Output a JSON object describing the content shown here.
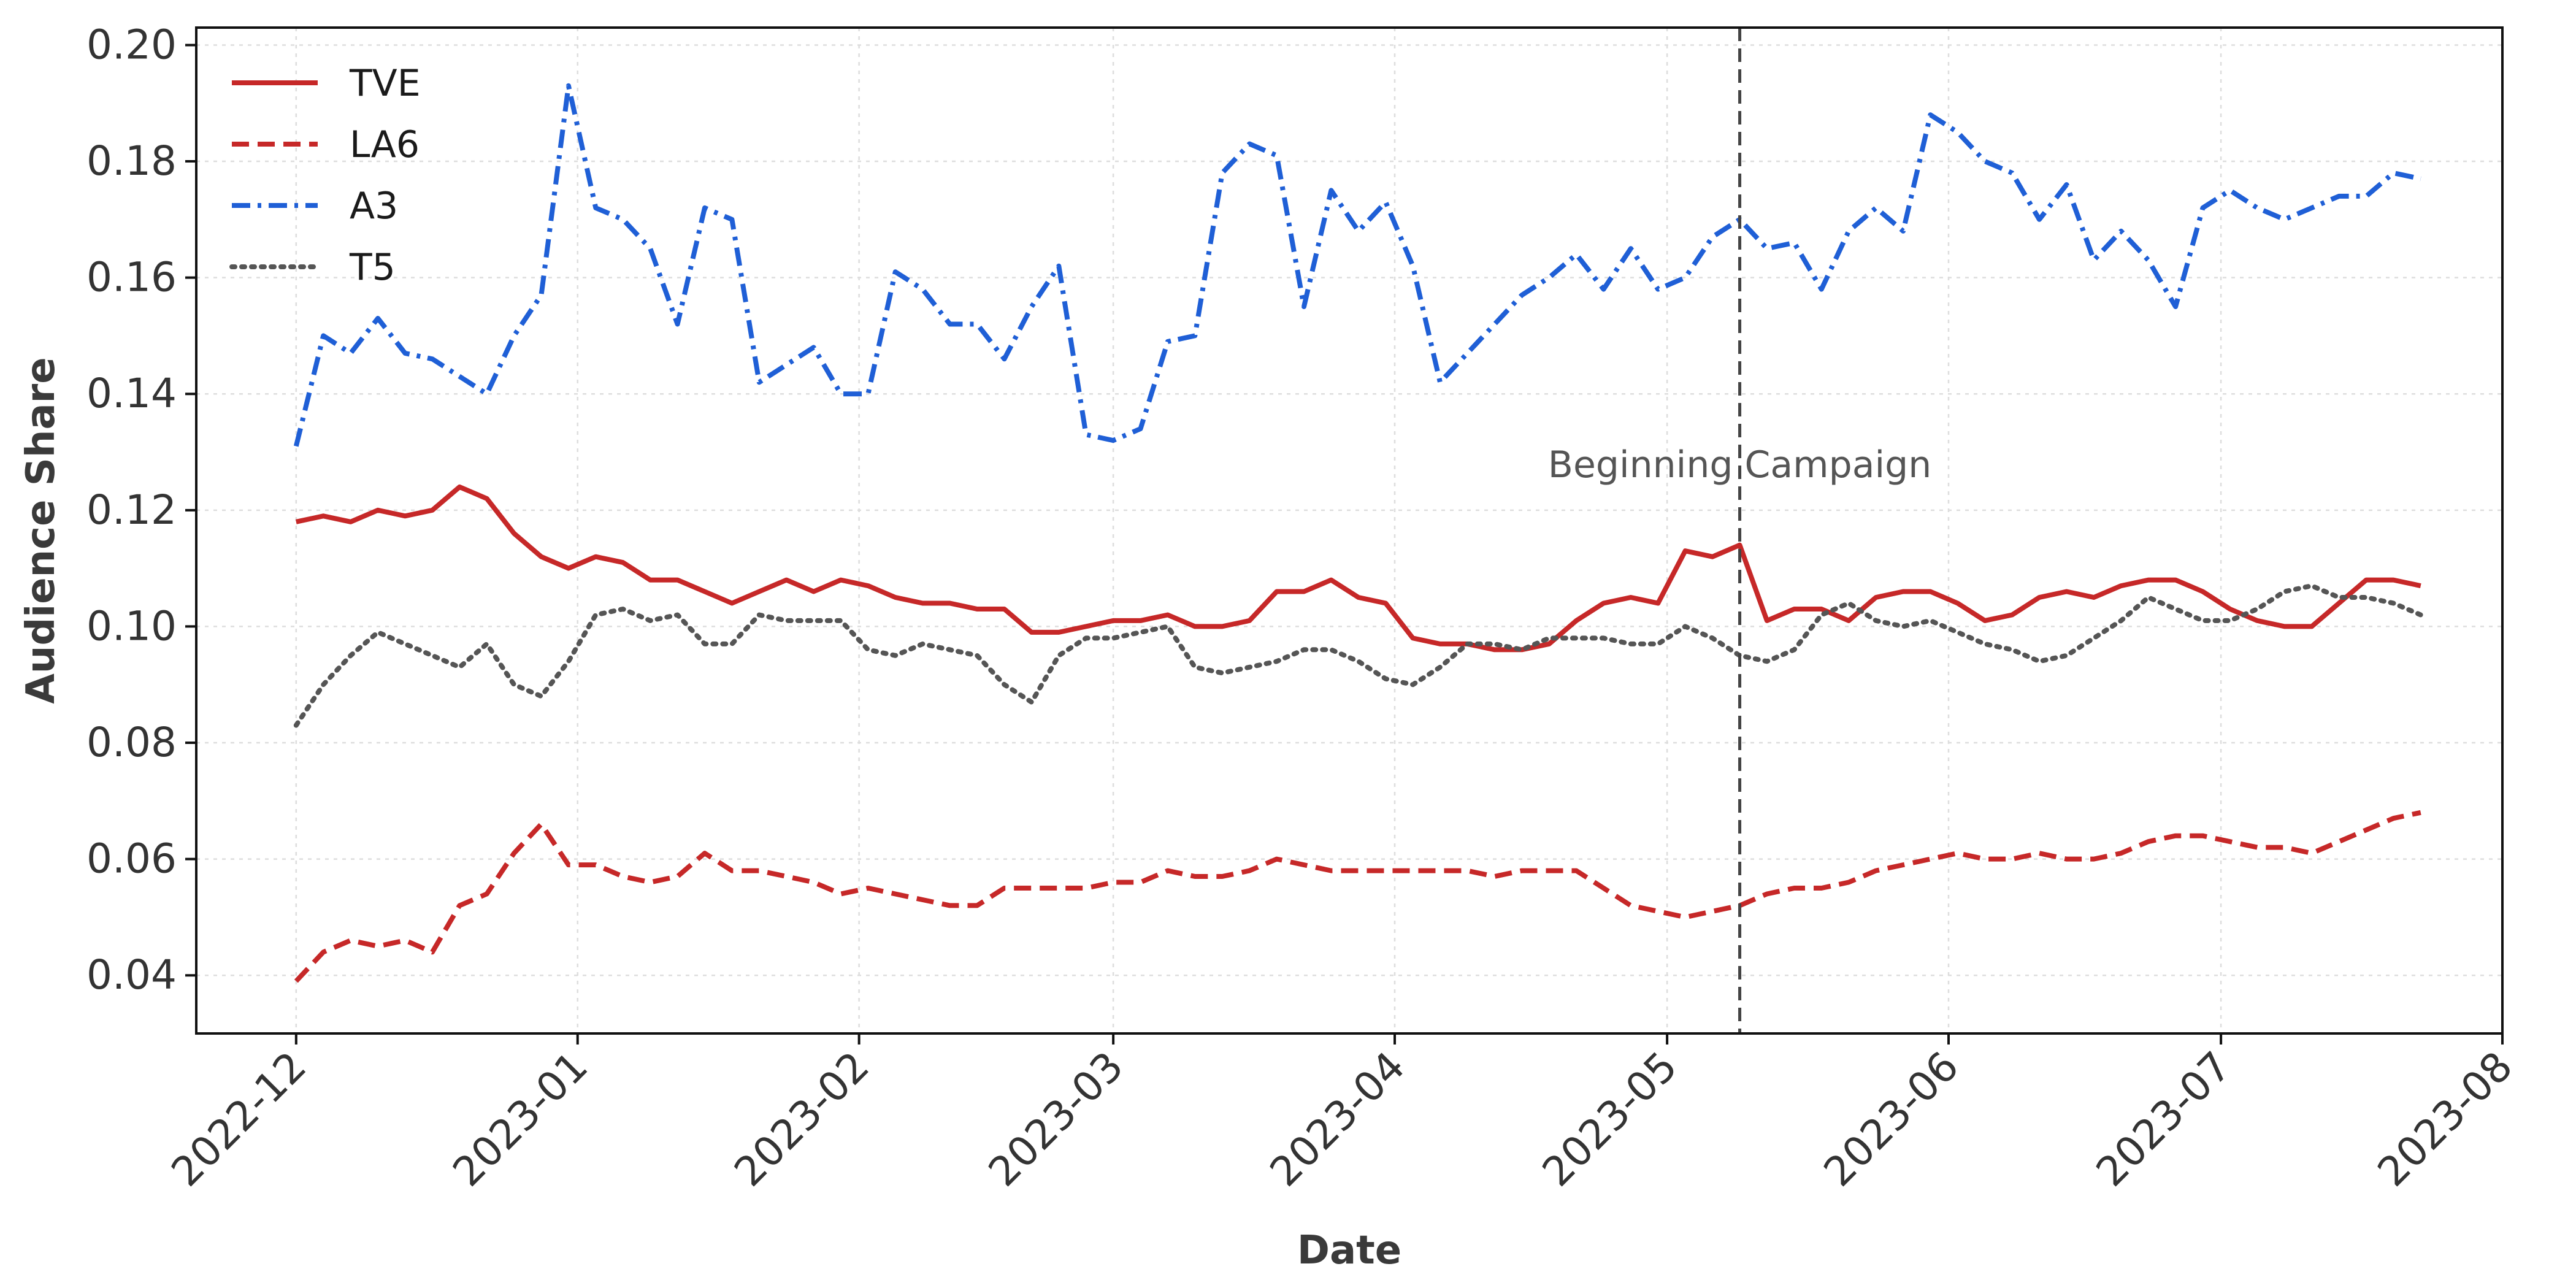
{
  "chart_data": {
    "type": "line",
    "title": "",
    "xlabel": "Date",
    "ylabel": "Audience Share",
    "xlim": [
      "2022-11-20",
      "2023-08-01"
    ],
    "ylim": [
      0.03,
      0.203
    ],
    "x_ticks": [
      "2022-12",
      "2023-01",
      "2023-02",
      "2023-03",
      "2023-04",
      "2023-05",
      "2023-06",
      "2023-07",
      "2023-08"
    ],
    "y_ticks": [
      "0.04",
      "0.06",
      "0.08",
      "0.10",
      "0.12",
      "0.14",
      "0.16",
      "0.18",
      "0.20"
    ],
    "grid": true,
    "legend_position": "top-left",
    "annotation": {
      "label": "Beginning Campaign",
      "date": "2023-05-09",
      "y": 0.128
    },
    "dates": [
      "2022-12-01",
      "2022-12-04",
      "2022-12-07",
      "2022-12-10",
      "2022-12-13",
      "2022-12-16",
      "2022-12-19",
      "2022-12-22",
      "2022-12-25",
      "2022-12-28",
      "2022-12-31",
      "2023-01-03",
      "2023-01-06",
      "2023-01-09",
      "2023-01-12",
      "2023-01-15",
      "2023-01-18",
      "2023-01-21",
      "2023-01-24",
      "2023-01-27",
      "2023-01-30",
      "2023-02-02",
      "2023-02-05",
      "2023-02-08",
      "2023-02-11",
      "2023-02-14",
      "2023-02-17",
      "2023-02-20",
      "2023-02-23",
      "2023-02-26",
      "2023-03-01",
      "2023-03-04",
      "2023-03-07",
      "2023-03-10",
      "2023-03-13",
      "2023-03-16",
      "2023-03-19",
      "2023-03-22",
      "2023-03-25",
      "2023-03-28",
      "2023-03-31",
      "2023-04-03",
      "2023-04-06",
      "2023-04-09",
      "2023-04-12",
      "2023-04-15",
      "2023-04-18",
      "2023-04-21",
      "2023-04-24",
      "2023-04-27",
      "2023-04-30",
      "2023-05-03",
      "2023-05-06",
      "2023-05-09",
      "2023-05-12",
      "2023-05-15",
      "2023-05-18",
      "2023-05-21",
      "2023-05-24",
      "2023-05-27",
      "2023-05-30",
      "2023-06-02",
      "2023-06-05",
      "2023-06-08",
      "2023-06-11",
      "2023-06-14",
      "2023-06-17",
      "2023-06-20",
      "2023-06-23",
      "2023-06-26",
      "2023-06-29",
      "2023-07-02",
      "2023-07-05",
      "2023-07-08",
      "2023-07-11",
      "2023-07-14",
      "2023-07-17",
      "2023-07-20",
      "2023-07-23"
    ],
    "series": [
      {
        "name": "TVE",
        "color": "#c62828",
        "dash": "solid",
        "values": [
          0.118,
          0.119,
          0.118,
          0.12,
          0.119,
          0.12,
          0.124,
          0.122,
          0.116,
          0.112,
          0.11,
          0.112,
          0.111,
          0.108,
          0.108,
          0.106,
          0.104,
          0.106,
          0.108,
          0.106,
          0.108,
          0.107,
          0.105,
          0.104,
          0.104,
          0.103,
          0.103,
          0.099,
          0.099,
          0.1,
          0.101,
          0.101,
          0.102,
          0.1,
          0.1,
          0.101,
          0.106,
          0.106,
          0.108,
          0.105,
          0.104,
          0.098,
          0.097,
          0.097,
          0.096,
          0.096,
          0.097,
          0.101,
          0.104,
          0.105,
          0.104,
          0.113,
          0.112,
          0.114,
          0.101,
          0.103,
          0.103,
          0.101,
          0.105,
          0.106,
          0.106,
          0.104,
          0.101,
          0.102,
          0.105,
          0.106,
          0.105,
          0.107,
          0.108,
          0.108,
          0.106,
          0.103,
          0.101,
          0.1,
          0.1,
          0.104,
          0.108,
          0.108,
          0.107
        ]
      },
      {
        "name": "LA6",
        "color": "#c62828",
        "dash": "dashed",
        "values": [
          0.039,
          0.044,
          0.046,
          0.045,
          0.046,
          0.044,
          0.052,
          0.054,
          0.061,
          0.066,
          0.059,
          0.059,
          0.057,
          0.056,
          0.057,
          0.061,
          0.058,
          0.058,
          0.057,
          0.056,
          0.054,
          0.055,
          0.054,
          0.053,
          0.052,
          0.052,
          0.055,
          0.055,
          0.055,
          0.055,
          0.056,
          0.056,
          0.058,
          0.057,
          0.057,
          0.058,
          0.06,
          0.059,
          0.058,
          0.058,
          0.058,
          0.058,
          0.058,
          0.058,
          0.057,
          0.058,
          0.058,
          0.058,
          0.055,
          0.052,
          0.051,
          0.05,
          0.051,
          0.052,
          0.054,
          0.055,
          0.055,
          0.056,
          0.058,
          0.059,
          0.06,
          0.061,
          0.06,
          0.06,
          0.061,
          0.06,
          0.06,
          0.061,
          0.063,
          0.064,
          0.064,
          0.063,
          0.062,
          0.062,
          0.061,
          0.063,
          0.065,
          0.067,
          0.068
        ]
      },
      {
        "name": "A3",
        "color": "#1f5fd6",
        "dash": "dashdot",
        "values": [
          0.131,
          0.15,
          0.147,
          0.153,
          0.147,
          0.146,
          0.143,
          0.14,
          0.15,
          0.157,
          0.193,
          0.172,
          0.17,
          0.165,
          0.152,
          0.172,
          0.17,
          0.142,
          0.145,
          0.148,
          0.14,
          0.14,
          0.161,
          0.158,
          0.152,
          0.152,
          0.146,
          0.155,
          0.162,
          0.133,
          0.132,
          0.134,
          0.149,
          0.15,
          0.178,
          0.183,
          0.181,
          0.155,
          0.175,
          0.168,
          0.173,
          0.162,
          0.142,
          0.147,
          0.152,
          0.157,
          0.16,
          0.164,
          0.158,
          0.165,
          0.158,
          0.16,
          0.167,
          0.17,
          0.165,
          0.166,
          0.158,
          0.168,
          0.172,
          0.168,
          0.188,
          0.185,
          0.18,
          0.178,
          0.17,
          0.176,
          0.163,
          0.168,
          0.163,
          0.155,
          0.172,
          0.175,
          0.172,
          0.17,
          0.172,
          0.174,
          0.174,
          0.178,
          0.177
        ]
      },
      {
        "name": "T5",
        "color": "#555555",
        "dash": "dotted",
        "values": [
          0.083,
          0.09,
          0.095,
          0.099,
          0.097,
          0.095,
          0.093,
          0.097,
          0.09,
          0.088,
          0.094,
          0.102,
          0.103,
          0.101,
          0.102,
          0.097,
          0.097,
          0.102,
          0.101,
          0.101,
          0.101,
          0.096,
          0.095,
          0.097,
          0.096,
          0.095,
          0.09,
          0.087,
          0.095,
          0.098,
          0.098,
          0.099,
          0.1,
          0.093,
          0.092,
          0.093,
          0.094,
          0.096,
          0.096,
          0.094,
          0.091,
          0.09,
          0.093,
          0.097,
          0.097,
          0.096,
          0.098,
          0.098,
          0.098,
          0.097,
          0.097,
          0.1,
          0.098,
          0.095,
          0.094,
          0.096,
          0.102,
          0.104,
          0.101,
          0.1,
          0.101,
          0.099,
          0.097,
          0.096,
          0.094,
          0.095,
          0.098,
          0.101,
          0.105,
          0.103,
          0.101,
          0.101,
          0.103,
          0.106,
          0.107,
          0.105,
          0.105,
          0.104,
          0.102
        ]
      }
    ]
  }
}
